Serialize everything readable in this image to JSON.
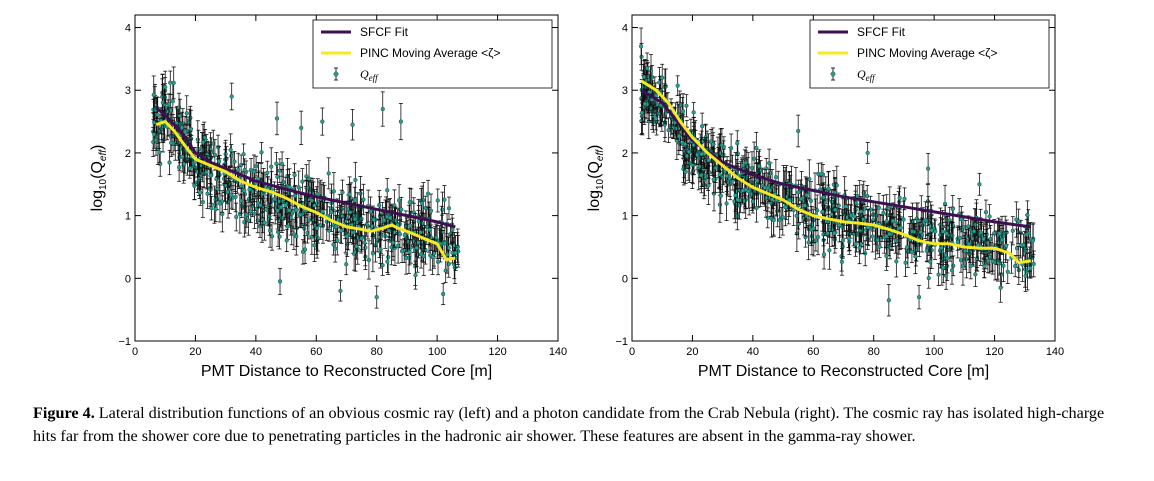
{
  "chart_data": [
    {
      "type": "scatter",
      "panel": "left",
      "xlabel": "PMT Distance to Reconstructed Core [m]",
      "ylabel_parts": [
        "log",
        "10",
        "(Q",
        "eff",
        ")"
      ],
      "xlim": [
        0,
        140
      ],
      "ylim": [
        -1,
        4.2
      ],
      "xticks": [
        "0",
        "20",
        "40",
        "60",
        "80",
        "100",
        "120",
        "140"
      ],
      "yticks": [
        "−1",
        "0",
        "1",
        "2",
        "3",
        "4"
      ],
      "grid": false,
      "legend_placement": "top-right",
      "legend": {
        "fit": "SFCF Fit",
        "avg": "PINC Moving Average <ζ>",
        "pts_base": "Q",
        "pts_sub": "eff"
      },
      "series": [
        {
          "name": "SFCF Fit",
          "kind": "line",
          "color": "#3e0f52",
          "x": [
            7,
            10,
            15,
            20,
            25,
            30,
            40,
            50,
            60,
            70,
            80,
            90,
            100,
            106
          ],
          "y": [
            2.72,
            2.6,
            2.35,
            2.0,
            1.85,
            1.75,
            1.55,
            1.42,
            1.3,
            1.2,
            1.1,
            1.0,
            0.9,
            0.82
          ]
        },
        {
          "name": "PINC Moving Average <ζ>",
          "kind": "line",
          "color": "#f5ea20",
          "x": [
            7,
            10,
            13,
            16,
            20,
            25,
            30,
            35,
            40,
            45,
            50,
            55,
            60,
            65,
            70,
            75,
            78,
            82,
            85,
            87,
            90,
            95,
            100,
            103,
            106
          ],
          "y": [
            2.45,
            2.5,
            2.35,
            2.15,
            1.9,
            1.8,
            1.7,
            1.55,
            1.45,
            1.38,
            1.28,
            1.15,
            1.05,
            0.92,
            0.82,
            0.78,
            0.75,
            0.8,
            0.85,
            0.8,
            0.75,
            0.65,
            0.55,
            0.3,
            0.32
          ]
        },
        {
          "name": "Q_eff",
          "kind": "scatter_errorbars",
          "color": "#2a9d8f",
          "x_range": [
            6,
            107
          ],
          "fit_at_x0": [
            7,
            2.72
          ],
          "decay": 0.016,
          "scatter": 0.45,
          "err": 0.22,
          "outliers": [
            [
              10,
              3.05
            ],
            [
              32,
              2.9
            ],
            [
              47,
              2.55
            ],
            [
              55,
              2.4
            ],
            [
              62,
              2.5
            ],
            [
              72,
              2.45
            ],
            [
              82,
              2.7
            ],
            [
              88,
              2.5
            ],
            [
              97,
              1.35
            ],
            [
              95,
              1.2
            ],
            [
              102,
              -0.25
            ],
            [
              48,
              -0.05
            ],
            [
              68,
              -0.2
            ],
            [
              80,
              -0.3
            ]
          ]
        }
      ]
    },
    {
      "type": "scatter",
      "panel": "right",
      "xlabel": "PMT Distance to Reconstructed Core [m]",
      "ylabel_parts": [
        "log",
        "10",
        "(Q",
        "eff",
        ")"
      ],
      "xlim": [
        0,
        140
      ],
      "ylim": [
        -1,
        4.2
      ],
      "xticks": [
        "0",
        "20",
        "40",
        "60",
        "80",
        "100",
        "120",
        "140"
      ],
      "yticks": [
        "−1",
        "0",
        "1",
        "2",
        "3",
        "4"
      ],
      "grid": false,
      "legend_placement": "top-right",
      "legend": {
        "fit": "SFCF Fit",
        "avg": "PINC Moving Average <ζ>",
        "pts_base": "Q",
        "pts_sub": "eff"
      },
      "series": [
        {
          "name": "SFCF Fit",
          "kind": "line",
          "color": "#3e0f52",
          "x": [
            3,
            10,
            15,
            20,
            30,
            40,
            50,
            60,
            70,
            80,
            90,
            100,
            110,
            120,
            132
          ],
          "y": [
            3.0,
            2.8,
            2.5,
            2.2,
            1.85,
            1.65,
            1.5,
            1.4,
            1.3,
            1.22,
            1.14,
            1.06,
            0.98,
            0.9,
            0.82
          ]
        },
        {
          "name": "PINC Moving Average <ζ>",
          "kind": "line",
          "color": "#f5ea20",
          "x": [
            3,
            8,
            12,
            16,
            20,
            25,
            30,
            35,
            40,
            45,
            50,
            55,
            60,
            65,
            70,
            75,
            80,
            85,
            90,
            95,
            100,
            105,
            110,
            115,
            120,
            125,
            128,
            132
          ],
          "y": [
            3.15,
            3.0,
            2.8,
            2.5,
            2.25,
            2.0,
            1.8,
            1.6,
            1.45,
            1.35,
            1.25,
            1.1,
            1.0,
            0.95,
            0.9,
            0.88,
            0.85,
            0.78,
            0.7,
            0.6,
            0.55,
            0.55,
            0.5,
            0.48,
            0.48,
            0.4,
            0.25,
            0.28
          ]
        },
        {
          "name": "Q_eff",
          "kind": "scatter_errorbars",
          "color": "#2a9d8f",
          "x_range": [
            3,
            133
          ],
          "fit_at_x0": [
            3,
            3.15
          ],
          "decay": 0.022,
          "scatter": 0.4,
          "err": 0.22,
          "outliers": [
            [
              3,
              3.7
            ],
            [
              5,
              3.35
            ],
            [
              10,
              3.2
            ],
            [
              55,
              2.35
            ],
            [
              78,
              2.0
            ],
            [
              98,
              1.75
            ],
            [
              115,
              1.5
            ],
            [
              85,
              -0.35
            ],
            [
              95,
              -0.3
            ],
            [
              122,
              -0.15
            ]
          ]
        }
      ]
    }
  ],
  "caption": {
    "label": "Figure 4.",
    "text": "Lateral distribution functions of an obvious cosmic ray (left) and a photon candidate from the Crab Nebula (right). The cosmic ray has isolated high-charge hits far from the shower core due to penetrating particles in the hadronic air shower. These features are absent in the gamma-ray shower."
  }
}
